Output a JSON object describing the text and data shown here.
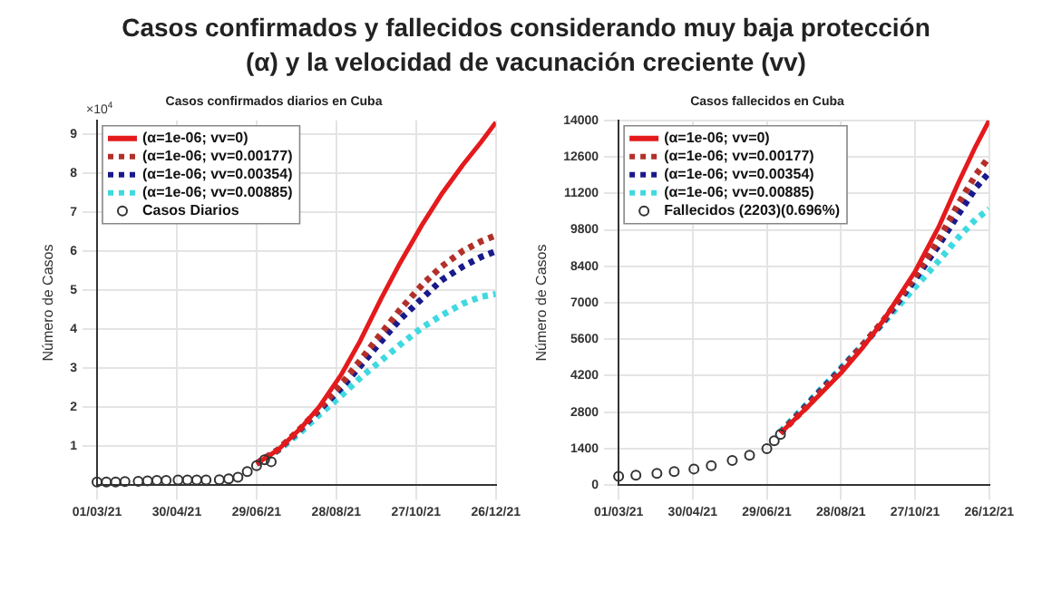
{
  "chart_data": [
    {
      "type": "line",
      "title": "Casos confirmados y fallecidos considerando muy baja  protección (α) y la velocidad de vacunación creciente (vv)",
      "subtitle": "Casos confirmados diarios en Cuba",
      "ylabel": "Número de Casos",
      "annotations": [
        "×10$^{4}$"
      ],
      "xlim": [
        "2021-03-01",
        "2021-12-26"
      ],
      "xticks": [
        {
          "value": "2021-03-01",
          "label": "01/03/21"
        },
        {
          "value": "2021-04-30",
          "label": "30/04/21"
        },
        {
          "value": "2021-06-29",
          "label": "29/06/21"
        },
        {
          "value": "2021-08-28",
          "label": "28/08/21"
        },
        {
          "value": "2021-10-27",
          "label": "27/10/21"
        },
        {
          "value": "2021-12-26",
          "label": "26/12/21"
        }
      ],
      "ylim": [
        0,
        9.35
      ],
      "yticks": [
        1,
        2,
        3,
        4,
        5,
        6,
        7,
        8,
        9
      ],
      "grid": true,
      "legend": "top left",
      "series": [
        {
          "name": "(α=1e-06; vv=0)",
          "color": "#e41a1c",
          "line_style": "solid",
          "x": [
            "2021-06-29",
            "2021-07-15",
            "2021-08-01",
            "2021-08-15",
            "2021-09-01",
            "2021-09-15",
            "2021-10-01",
            "2021-10-15",
            "2021-11-01",
            "2021-11-15",
            "2021-12-01",
            "2021-12-15",
            "2021-12-26"
          ],
          "values": [
            0.55,
            0.9,
            1.45,
            2.0,
            2.85,
            3.7,
            4.8,
            5.7,
            6.7,
            7.45,
            8.2,
            8.8,
            9.3
          ]
        },
        {
          "name": "(α=1e-06; vv=0.00177)",
          "color": "#b2302a",
          "line_style": "dotted",
          "x": [
            "2021-06-29",
            "2021-07-15",
            "2021-08-01",
            "2021-08-15",
            "2021-09-01",
            "2021-09-15",
            "2021-10-01",
            "2021-10-15",
            "2021-11-01",
            "2021-11-15",
            "2021-12-01",
            "2021-12-15",
            "2021-12-26"
          ],
          "values": [
            0.55,
            0.9,
            1.45,
            1.95,
            2.6,
            3.2,
            3.9,
            4.5,
            5.15,
            5.6,
            6.0,
            6.25,
            6.4
          ]
        },
        {
          "name": "(α=1e-06; vv=0.00354)",
          "color": "#1a1a8c",
          "line_style": "dotted",
          "x": [
            "2021-06-29",
            "2021-07-15",
            "2021-08-01",
            "2021-08-15",
            "2021-09-01",
            "2021-09-15",
            "2021-10-01",
            "2021-10-15",
            "2021-11-01",
            "2021-11-15",
            "2021-12-01",
            "2021-12-15",
            "2021-12-26"
          ],
          "values": [
            0.55,
            0.9,
            1.43,
            1.92,
            2.5,
            3.05,
            3.7,
            4.25,
            4.8,
            5.25,
            5.6,
            5.85,
            6.0
          ]
        },
        {
          "name": "(α=1e-06; vv=0.00885)",
          "color": "#3fd9e0",
          "line_style": "dotted",
          "x": [
            "2021-06-29",
            "2021-07-15",
            "2021-08-01",
            "2021-08-15",
            "2021-09-01",
            "2021-09-15",
            "2021-10-01",
            "2021-10-15",
            "2021-11-01",
            "2021-11-15",
            "2021-12-01",
            "2021-12-15",
            "2021-12-26"
          ],
          "values": [
            0.55,
            0.88,
            1.35,
            1.8,
            2.3,
            2.75,
            3.2,
            3.6,
            4.05,
            4.35,
            4.65,
            4.83,
            4.9
          ]
        },
        {
          "name": "Casos Diarios",
          "color": "#333333",
          "type": "scatter",
          "marker": "circle",
          "x": [
            "2021-03-01",
            "2021-03-08",
            "2021-03-15",
            "2021-03-22",
            "2021-04-01",
            "2021-04-08",
            "2021-04-15",
            "2021-04-22",
            "2021-05-01",
            "2021-05-08",
            "2021-05-15",
            "2021-05-22",
            "2021-06-01",
            "2021-06-08",
            "2021-06-15",
            "2021-06-22",
            "2021-06-29",
            "2021-07-05",
            "2021-07-10"
          ],
          "values": [
            0.08,
            0.08,
            0.08,
            0.09,
            0.1,
            0.11,
            0.12,
            0.12,
            0.13,
            0.13,
            0.13,
            0.13,
            0.14,
            0.16,
            0.2,
            0.35,
            0.5,
            0.65,
            0.6
          ]
        }
      ]
    },
    {
      "type": "line",
      "subtitle": "Casos fallecidos en Cuba",
      "ylabel": "Número de Casos",
      "xlim": [
        "2021-03-01",
        "2021-12-26"
      ],
      "xticks": [
        {
          "value": "2021-03-01",
          "label": "01/03/21"
        },
        {
          "value": "2021-04-30",
          "label": "30/04/21"
        },
        {
          "value": "2021-06-29",
          "label": "29/06/21"
        },
        {
          "value": "2021-08-28",
          "label": "28/08/21"
        },
        {
          "value": "2021-10-27",
          "label": "27/10/21"
        },
        {
          "value": "2021-12-26",
          "label": "26/12/21"
        }
      ],
      "ylim": [
        0,
        14000
      ],
      "yticks": [
        0,
        1400,
        2800,
        4200,
        5600,
        7000,
        8400,
        9800,
        11200,
        12600,
        14000
      ],
      "grid": true,
      "legend": "top left",
      "series": [
        {
          "name": "(α=1e-06; vv=0)",
          "color": "#e41a1c",
          "line_style": "solid",
          "x": [
            "2021-07-10",
            "2021-08-01",
            "2021-08-28",
            "2021-09-15",
            "2021-10-01",
            "2021-10-27",
            "2021-11-15",
            "2021-12-01",
            "2021-12-15",
            "2021-12-26"
          ],
          "values": [
            2000,
            3000,
            4300,
            5300,
            6300,
            8200,
            9900,
            11600,
            13000,
            14000
          ]
        },
        {
          "name": "(α=1e-06; vv=0.00177)",
          "color": "#b2302a",
          "line_style": "dotted",
          "x": [
            "2021-07-10",
            "2021-08-01",
            "2021-08-28",
            "2021-09-15",
            "2021-10-01",
            "2021-10-27",
            "2021-11-15",
            "2021-12-01",
            "2021-12-15",
            "2021-12-26"
          ],
          "values": [
            2000,
            3050,
            4400,
            5400,
            6300,
            8000,
            9400,
            10800,
            11900,
            12600
          ]
        },
        {
          "name": "(α=1e-06; vv=0.00354)",
          "color": "#1a1a8c",
          "line_style": "dotted",
          "x": [
            "2021-07-10",
            "2021-08-01",
            "2021-08-28",
            "2021-09-15",
            "2021-10-01",
            "2021-10-27",
            "2021-11-15",
            "2021-12-01",
            "2021-12-15",
            "2021-12-26"
          ],
          "values": [
            2000,
            3100,
            4450,
            5400,
            6250,
            7900,
            9200,
            10400,
            11400,
            12000
          ]
        },
        {
          "name": "(α=1e-06; vv=0.00885)",
          "color": "#3fd9e0",
          "line_style": "dotted",
          "x": [
            "2021-07-10",
            "2021-08-01",
            "2021-08-28",
            "2021-09-15",
            "2021-10-01",
            "2021-10-27",
            "2021-11-15",
            "2021-12-01",
            "2021-12-15",
            "2021-12-26"
          ],
          "values": [
            2050,
            3150,
            4500,
            5400,
            6200,
            7600,
            8600,
            9500,
            10200,
            10600
          ]
        },
        {
          "name": "Fallecidos (2203)(0.696%)",
          "color": "#333333",
          "type": "scatter",
          "marker": "circle",
          "x": [
            "2021-03-01",
            "2021-03-15",
            "2021-04-01",
            "2021-04-15",
            "2021-05-01",
            "2021-05-15",
            "2021-06-01",
            "2021-06-15",
            "2021-06-29",
            "2021-07-05",
            "2021-07-10"
          ],
          "values": [
            340,
            380,
            450,
            520,
            620,
            750,
            950,
            1150,
            1400,
            1700,
            1950
          ]
        }
      ]
    }
  ]
}
